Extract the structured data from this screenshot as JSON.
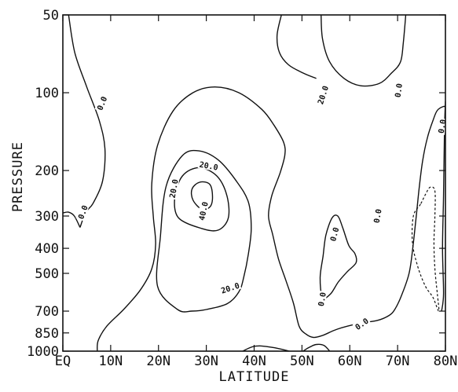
{
  "chart_data": {
    "type": "contour",
    "xlabel": "LATITUDE",
    "ylabel": "PRESSURE",
    "x_ticks": [
      {
        "label": "EQ",
        "value": 0
      },
      {
        "label": "10N",
        "value": 10
      },
      {
        "label": "20N",
        "value": 20
      },
      {
        "label": "30N",
        "value": 30
      },
      {
        "label": "40N",
        "value": 40
      },
      {
        "label": "50N",
        "value": 50
      },
      {
        "label": "60N",
        "value": 60
      },
      {
        "label": "70N",
        "value": 70
      },
      {
        "label": "80N",
        "value": 80
      }
    ],
    "y_ticks": [
      {
        "label": "50",
        "value": 50
      },
      {
        "label": "100",
        "value": 100
      },
      {
        "label": "200",
        "value": 200
      },
      {
        "label": "300",
        "value": 300
      },
      {
        "label": "400",
        "value": 400
      },
      {
        "label": "500",
        "value": 500
      },
      {
        "label": "700",
        "value": 700
      },
      {
        "label": "850",
        "value": 850
      },
      {
        "label": "1000",
        "value": 1000
      }
    ],
    "xlim": [
      0,
      80
    ],
    "ylim": [
      50,
      1000
    ],
    "y_scale": "log-pressure",
    "contours": [
      {
        "level": "0.0",
        "dashed": false,
        "points": [
          [
            1.2,
            50
          ],
          [
            2.5,
            70
          ],
          [
            5,
            95
          ],
          [
            7.6,
            128
          ],
          [
            8.8,
            165
          ],
          [
            8.3,
            220
          ],
          [
            6.3,
            268
          ],
          [
            4.8,
            290
          ],
          [
            3.6,
            332
          ]
        ]
      },
      {
        "level": "0.0",
        "dashed": false,
        "points": [
          [
            0,
            292
          ],
          [
            1.2,
            290
          ],
          [
            2.4,
            300
          ],
          [
            3.6,
            332
          ]
        ]
      },
      {
        "level": "20.0",
        "dashed": false,
        "points": [
          [
            53,
            88
          ],
          [
            50.3,
            84
          ],
          [
            47.2,
            78
          ],
          [
            45.3,
            70
          ],
          [
            44.8,
            60
          ],
          [
            45.7,
            50
          ]
        ]
      },
      {
        "level": "0.0",
        "dashed": false,
        "points": [
          [
            54,
            50
          ],
          [
            54.3,
            62
          ],
          [
            55.8,
            76
          ],
          [
            58.8,
            88
          ],
          [
            62.3,
            94
          ],
          [
            66.2,
            92
          ],
          [
            68.7,
            84
          ],
          [
            70.6,
            76
          ],
          [
            71.2,
            64
          ],
          [
            71.7,
            50
          ]
        ]
      },
      {
        "level": "0.0",
        "dashed": false,
        "points": [
          [
            7.2,
            1000
          ],
          [
            7.4,
            910
          ],
          [
            9.2,
            800
          ],
          [
            12.7,
            690
          ],
          [
            16.2,
            580
          ],
          [
            18.6,
            480
          ],
          [
            19.4,
            385
          ],
          [
            18.9,
            300
          ],
          [
            18.6,
            225
          ],
          [
            19.8,
            160
          ],
          [
            23,
            118
          ],
          [
            27.2,
            100
          ],
          [
            31.8,
            95
          ],
          [
            36.8,
            100
          ],
          [
            41.6,
            116
          ],
          [
            44.2,
            134
          ],
          [
            46.2,
            156
          ],
          [
            46.4,
            175
          ],
          [
            45.4,
            205
          ],
          [
            43.7,
            250
          ],
          [
            43,
            300
          ],
          [
            43.9,
            355
          ],
          [
            45.1,
            440
          ],
          [
            46.6,
            530
          ],
          [
            48.2,
            650
          ],
          [
            49.4,
            800
          ],
          [
            50.8,
            858
          ],
          [
            52.4,
            885
          ],
          [
            54.4,
            868
          ],
          [
            57.4,
            822
          ],
          [
            61.7,
            783
          ],
          [
            65.8,
            760
          ],
          [
            68.2,
            728
          ],
          [
            69.4,
            690
          ],
          [
            70.8,
            610
          ],
          [
            72.4,
            500
          ],
          [
            73.2,
            395
          ],
          [
            73.9,
            300
          ],
          [
            74.5,
            235
          ],
          [
            75.2,
            185
          ],
          [
            76.2,
            150
          ],
          [
            77.4,
            128
          ],
          [
            78.3,
            117
          ],
          [
            79.6,
            113
          ],
          [
            80,
            114
          ]
        ]
      },
      {
        "level": "20.0",
        "dashed": false,
        "points": [
          [
            24,
            690
          ],
          [
            19.8,
            560
          ],
          [
            20.4,
            360
          ],
          [
            21.6,
            230
          ],
          [
            25,
            175
          ],
          [
            28.5,
            168
          ],
          [
            32.5,
            182
          ],
          [
            36.3,
            220
          ],
          [
            38.8,
            265
          ],
          [
            39.4,
            335
          ],
          [
            38.8,
            420
          ],
          [
            37.8,
            520
          ],
          [
            36.8,
            590
          ],
          [
            34.4,
            655
          ],
          [
            30,
            690
          ],
          [
            27,
            700
          ],
          [
            24,
            690
          ]
        ]
      },
      {
        "level": "20.0",
        "dashed": false,
        "points": [
          [
            29,
            335
          ],
          [
            24.2,
            305
          ],
          [
            23.4,
            255
          ],
          [
            25,
            210
          ],
          [
            28.5,
            195
          ],
          [
            32.2,
            210
          ],
          [
            34.3,
            250
          ],
          [
            34.6,
            305
          ],
          [
            32.5,
            340
          ],
          [
            29,
            335
          ]
        ]
      },
      {
        "level": "40.0",
        "dashed": false,
        "points": [
          [
            29,
            282
          ],
          [
            27.2,
            260
          ],
          [
            27,
            236
          ],
          [
            28.6,
            222
          ],
          [
            30.7,
            226
          ],
          [
            31.3,
            252
          ],
          [
            30.8,
            276
          ],
          [
            29,
            282
          ]
        ]
      },
      {
        "level": "0.0",
        "dashed": false,
        "points": [
          [
            54.3,
            620
          ],
          [
            53.8,
            520
          ],
          [
            54.4,
            430
          ],
          [
            55,
            356
          ],
          [
            56.3,
            305
          ],
          [
            57.5,
            300
          ],
          [
            58.5,
            332
          ],
          [
            59.8,
            390
          ],
          [
            61.1,
            420
          ],
          [
            61.3,
            455
          ],
          [
            59.5,
            492
          ],
          [
            57.6,
            540
          ],
          [
            56,
            600
          ],
          [
            54.3,
            620
          ]
        ]
      },
      {
        "level": "",
        "dashed": true,
        "points": [
          [
            74.8,
            270
          ],
          [
            73.3,
            300
          ],
          [
            73.1,
            380
          ],
          [
            74.2,
            470
          ],
          [
            75.8,
            560
          ],
          [
            77.4,
            620
          ],
          [
            78.6,
            700
          ],
          [
            78.3,
            600
          ],
          [
            77.8,
            480
          ],
          [
            77.6,
            380
          ],
          [
            77.8,
            300
          ],
          [
            77.8,
            240
          ],
          [
            76.8,
            232
          ],
          [
            75.8,
            248
          ],
          [
            74.8,
            270
          ]
        ]
      },
      {
        "level": "",
        "dashed": false,
        "points": [
          [
            79.2,
            700
          ],
          [
            79.6,
            600
          ],
          [
            79.4,
            400
          ],
          [
            79.6,
            250
          ],
          [
            79.8,
            140
          ],
          [
            80,
            108
          ]
        ]
      },
      {
        "level": "",
        "dashed": false,
        "points": [
          [
            47.4,
            1000
          ],
          [
            44.2,
            970
          ],
          [
            41.5,
            955
          ],
          [
            39.6,
            962
          ],
          [
            37.6,
            1000
          ]
        ]
      },
      {
        "level": "",
        "dashed": false,
        "points": [
          [
            50.2,
            1000
          ],
          [
            51.6,
            965
          ],
          [
            53,
            942
          ],
          [
            54.6,
            950
          ],
          [
            55.8,
            1000
          ]
        ]
      }
    ],
    "contour_labels": [
      {
        "text": "0.0",
        "x": 8.2,
        "y": 110,
        "angle": -68
      },
      {
        "text": "20.0",
        "x": 54.4,
        "y": 102,
        "angle": -72
      },
      {
        "text": "0.0",
        "x": 70.2,
        "y": 98,
        "angle": -82
      },
      {
        "text": "0.0",
        "x": 79.3,
        "y": 135,
        "angle": -80
      },
      {
        "text": "20.0",
        "x": 30.5,
        "y": 192,
        "angle": 10
      },
      {
        "text": "20.0",
        "x": 23.2,
        "y": 235,
        "angle": -80
      },
      {
        "text": "40.0",
        "x": 29.4,
        "y": 287,
        "angle": -78
      },
      {
        "text": "0.0",
        "x": 4.2,
        "y": 290,
        "angle": -70
      },
      {
        "text": "0.0",
        "x": 65.8,
        "y": 300,
        "angle": -80
      },
      {
        "text": "0.0",
        "x": 56.8,
        "y": 353,
        "angle": -75
      },
      {
        "text": "20.0",
        "x": 35,
        "y": 570,
        "angle": -18
      },
      {
        "text": "0.0",
        "x": 54.2,
        "y": 630,
        "angle": -80
      },
      {
        "text": "0.0",
        "x": 62.5,
        "y": 785,
        "angle": -35
      }
    ]
  }
}
